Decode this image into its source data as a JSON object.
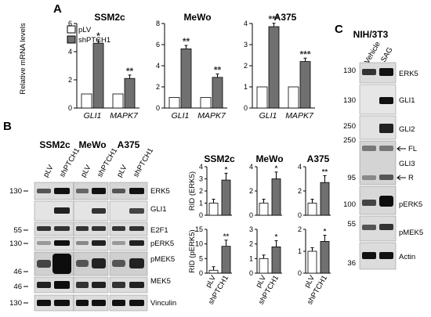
{
  "panels": {
    "a": "A",
    "b": "B",
    "c": "C"
  },
  "colors": {
    "control_bar": "#ffffff",
    "treated_bar": "#707070",
    "band_dark": "#1a1a1a",
    "blot_bg": "#d9d9d9"
  },
  "panel_a": {
    "ylabel": "Relative mRNA levels",
    "legend": [
      {
        "label": "pLV",
        "color": "#ffffff"
      },
      {
        "label": "shPTCH1",
        "color": "#707070"
      }
    ],
    "categories": [
      "GLI1",
      "MAPK7"
    ]
  },
  "panel_b": {
    "lane_groups": [
      {
        "title": "SSM2c",
        "lanes": [
          "pLV",
          "shPTCH1"
        ]
      },
      {
        "title": "MeWo",
        "lanes": [
          "pLV",
          "shPTCH1"
        ]
      },
      {
        "title": "A375",
        "lanes": [
          "pLV",
          "shPTCH1"
        ]
      }
    ],
    "rows": [
      {
        "mw": "130",
        "label": "ERK5"
      },
      {
        "mw": "",
        "label": "GLI1"
      },
      {
        "mw": "55",
        "label": "E2F1"
      },
      {
        "mw": "130",
        "label": "pERK5"
      },
      {
        "mw": "46",
        "label": "pMEK5"
      },
      {
        "mw": "46",
        "label": "MEK5"
      },
      {
        "mw": "130",
        "label": "Vinculin"
      }
    ],
    "xticks": [
      "pLV",
      "shPTCH1"
    ]
  },
  "panel_c": {
    "title": "NIH/3T3",
    "lanes": [
      "Vehicle",
      "SAG"
    ],
    "rows": [
      {
        "mw": "130",
        "label": "ERK5"
      },
      {
        "mw": "130",
        "label": "GLI1"
      },
      {
        "mw": "250",
        "label": "GLI2"
      },
      {
        "mw": "250",
        "label": "GLI3"
      },
      {
        "mw": "95",
        "label": ""
      },
      {
        "mw": "100",
        "label": "pERK5"
      },
      {
        "mw": "55",
        "label": "pMEK5"
      },
      {
        "mw": "36",
        "label": "Actin"
      }
    ],
    "arrows": [
      {
        "label": "FL"
      },
      {
        "label": "R"
      }
    ]
  },
  "chart_data": [
    {
      "type": "bar",
      "title": "SSM2c",
      "ylabel": "Relative mRNA levels",
      "categories": [
        "GLI1",
        "MAPK7"
      ],
      "ylim": [
        0,
        6
      ],
      "yticks": [
        "0",
        "2",
        "4",
        "6"
      ],
      "series": [
        {
          "name": "pLV",
          "values": [
            1.0,
            1.0
          ]
        },
        {
          "name": "shPTCH1",
          "values": [
            4.6,
            2.1
          ]
        }
      ],
      "significance": [
        "*",
        "**"
      ]
    },
    {
      "type": "bar",
      "title": "MeWo",
      "ylabel": "",
      "categories": [
        "GLI1",
        "MAPK7"
      ],
      "ylim": [
        0,
        8
      ],
      "yticks": [
        "0",
        "2",
        "4",
        "6",
        "8"
      ],
      "series": [
        {
          "name": "pLV",
          "values": [
            1.0,
            1.0
          ]
        },
        {
          "name": "shPTCH1",
          "values": [
            5.6,
            2.9
          ]
        }
      ],
      "significance": [
        "**",
        "**"
      ]
    },
    {
      "type": "bar",
      "title": "A375",
      "ylabel": "",
      "categories": [
        "GLI1",
        "MAPK7"
      ],
      "ylim": [
        0,
        4
      ],
      "yticks": [
        "0",
        "1",
        "2",
        "3",
        "4"
      ],
      "series": [
        {
          "name": "pLV",
          "values": [
            1.0,
            1.0
          ]
        },
        {
          "name": "shPTCH1",
          "values": [
            3.85,
            2.2
          ]
        }
      ],
      "significance": [
        "***",
        "***"
      ]
    },
    {
      "type": "bar",
      "title": "SSM2c",
      "ylabel": "RID (ERK5)",
      "categories": [
        "pLV",
        "shPTCH1"
      ],
      "ylim": [
        0,
        4
      ],
      "yticks": [
        "0",
        "1",
        "2",
        "3",
        "4"
      ],
      "series": [
        {
          "values": [
            1.0,
            2.9
          ]
        }
      ],
      "significance": [
        "*"
      ]
    },
    {
      "type": "bar",
      "title": "MeWo",
      "ylabel": "",
      "categories": [
        "pLV",
        "shPTCH1"
      ],
      "ylim": [
        0,
        4
      ],
      "yticks": [
        "0",
        "2",
        "4"
      ],
      "series": [
        {
          "values": [
            1.0,
            3.0
          ]
        }
      ],
      "significance": [
        "*"
      ]
    },
    {
      "type": "bar",
      "title": "A375",
      "ylabel": "",
      "categories": [
        "pLV",
        "shPTCH1"
      ],
      "ylim": [
        0,
        4
      ],
      "yticks": [
        "0",
        "2",
        "4"
      ],
      "series": [
        {
          "values": [
            1.0,
            2.7
          ]
        }
      ],
      "significance": [
        "**"
      ]
    },
    {
      "type": "bar",
      "title": "",
      "ylabel": "RID (pERK5)",
      "categories": [
        "pLV",
        "shPTCH1"
      ],
      "ylim": [
        0,
        15
      ],
      "yticks": [
        "0",
        "5",
        "10",
        "15"
      ],
      "series": [
        {
          "values": [
            1.0,
            9.2
          ]
        }
      ],
      "significance": [
        "**"
      ]
    },
    {
      "type": "bar",
      "title": "",
      "ylabel": "",
      "categories": [
        "pLV",
        "shPTCH1"
      ],
      "ylim": [
        0,
        3
      ],
      "yticks": [
        "0",
        "1",
        "2",
        "3"
      ],
      "series": [
        {
          "values": [
            1.0,
            1.8
          ]
        }
      ],
      "significance": [
        "*"
      ]
    },
    {
      "type": "bar",
      "title": "",
      "ylabel": "",
      "categories": [
        "pLV",
        "shPTCH1"
      ],
      "ylim": [
        0,
        2
      ],
      "yticks": [
        "0",
        "1",
        "2"
      ],
      "series": [
        {
          "values": [
            1.0,
            1.45
          ]
        }
      ],
      "significance": [
        "*"
      ]
    }
  ]
}
